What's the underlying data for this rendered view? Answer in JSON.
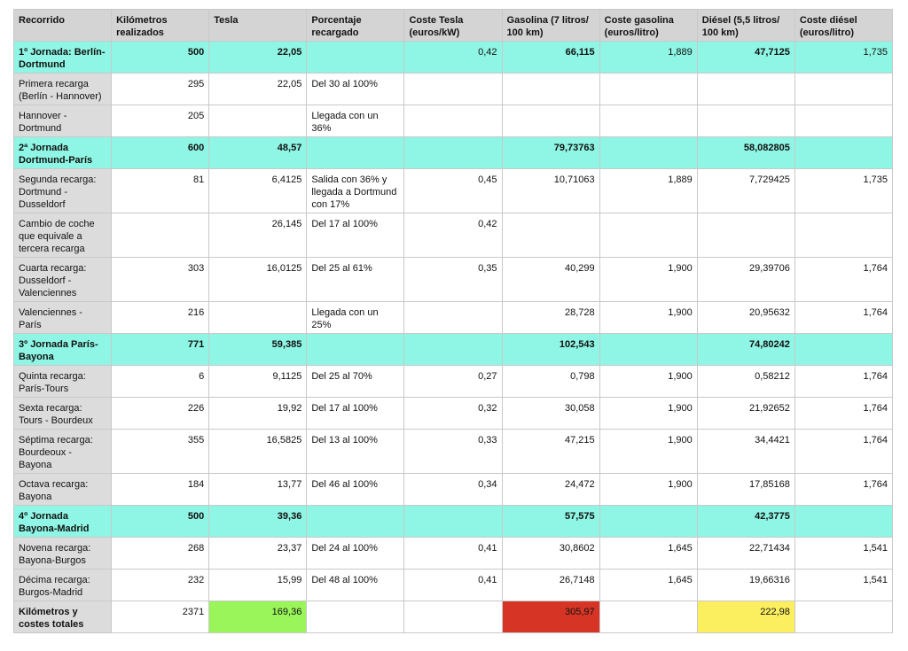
{
  "colors": {
    "header_bg": "#d4d4d4",
    "jornada_bg": "#8ff5e4",
    "first_col_bg": "#dcdcdc"
  },
  "headers": [
    "Recorrido",
    "Kilómetros realizados",
    "Tesla",
    "Porcentaje recargado",
    "Coste Tesla (euros/kW)",
    "Gasolina (7 litros/ 100 km)",
    "Coste gasolina (euros/litro)",
    "Diésel (5,5 litros/ 100 km)",
    "Coste diésel (euros/litro)"
  ],
  "rows": [
    {
      "type": "jornada",
      "cells": [
        "1º Jornada: Berlín-Dortmund",
        "500",
        "22,05",
        "",
        "0,42",
        "66,115",
        "1,889",
        "47,7125",
        "1,735"
      ]
    },
    {
      "type": "detail",
      "cells": [
        "Primera recarga (Berlín - Hannover)",
        "295",
        "22,05",
        "Del 30 al 100%",
        "",
        "",
        "",
        "",
        ""
      ]
    },
    {
      "type": "detail",
      "cells": [
        "Hannover - Dortmund",
        "205",
        "",
        "Llegada con un 36%",
        "",
        "",
        "",
        "",
        ""
      ]
    },
    {
      "type": "jornada",
      "cells": [
        "2ª Jornada Dortmund-París",
        "600",
        "48,57",
        "",
        "",
        "79,73763",
        "",
        "58,082805",
        ""
      ]
    },
    {
      "type": "detail",
      "tall": true,
      "cells": [
        "Segunda recarga: Dortmund - Dusseldorf",
        "81",
        "6,4125",
        "Salida con 36% y llegada a Dortmund con 17%",
        "0,45",
        "10,71063",
        "1,889",
        "7,729425",
        "1,735"
      ]
    },
    {
      "type": "detail",
      "tall": true,
      "cells": [
        "Cambio de coche que equivale a tercera recarga",
        "",
        "26,145",
        "Del 17 al 100%",
        "0,42",
        "",
        "",
        "",
        ""
      ]
    },
    {
      "type": "detail",
      "tall": true,
      "cells": [
        "Cuarta recarga: Dusseldorf - Valenciennes",
        "303",
        "16,0125",
        "Del 25 al 61%",
        "0,35",
        "40,299",
        "1,900",
        "29,39706",
        "1,764"
      ]
    },
    {
      "type": "detail",
      "cells": [
        "Valenciennes - París",
        "216",
        "",
        "Llegada con un 25%",
        "",
        "28,728",
        "1,900",
        "20,95632",
        "1,764"
      ]
    },
    {
      "type": "jornada",
      "cells": [
        "3º Jornada París-Bayona",
        "771",
        "59,385",
        "",
        "",
        "102,543",
        "",
        "74,80242",
        ""
      ]
    },
    {
      "type": "detail",
      "cells": [
        "Quinta recarga: París-Tours",
        "6",
        "9,1125",
        "Del 25 al 70%",
        "0,27",
        "0,798",
        "1,900",
        "0,58212",
        "1,764"
      ]
    },
    {
      "type": "detail",
      "cells": [
        "Sexta recarga: Tours - Bourdeux",
        "226",
        "19,92",
        "Del 17 al 100%",
        "0,32",
        "30,058",
        "1,900",
        "21,92652",
        "1,764"
      ]
    },
    {
      "type": "detail",
      "tall": true,
      "cells": [
        "Séptima recarga: Bourdeoux - Bayona",
        "355",
        "16,5825",
        "Del 13 al 100%",
        "0,33",
        "47,215",
        "1,900",
        "34,4421",
        "1,764"
      ]
    },
    {
      "type": "detail",
      "cells": [
        "Octava recarga: Bayona",
        "184",
        "13,77",
        "Del 46 al 100%",
        "0,34",
        "24,472",
        "1,900",
        "17,85168",
        "1,764"
      ]
    },
    {
      "type": "jornada",
      "cells": [
        "4º Jornada Bayona-Madrid",
        "500",
        "39,36",
        "",
        "",
        "57,575",
        "",
        "42,3775",
        ""
      ]
    },
    {
      "type": "detail",
      "cells": [
        "Novena recarga: Bayona-Burgos",
        "268",
        "23,37",
        "Del 24 al 100%",
        "0,41",
        "30,8602",
        "1,645",
        "22,71434",
        "1,541"
      ]
    },
    {
      "type": "detail",
      "cells": [
        "Décima recarga: Burgos-Madrid",
        "232",
        "15,99",
        "Del 48 al 100%",
        "0,41",
        "26,7148",
        "1,645",
        "19,66316",
        "1,541"
      ]
    },
    {
      "type": "total",
      "cells": [
        "Kilómetros y costes totales",
        "2371",
        "169,36",
        "",
        "",
        "305,97",
        "",
        "222,98",
        ""
      ],
      "highlights": {
        "2": "#9af55a",
        "5": "#d63526",
        "7": "#fbef60"
      }
    }
  ]
}
